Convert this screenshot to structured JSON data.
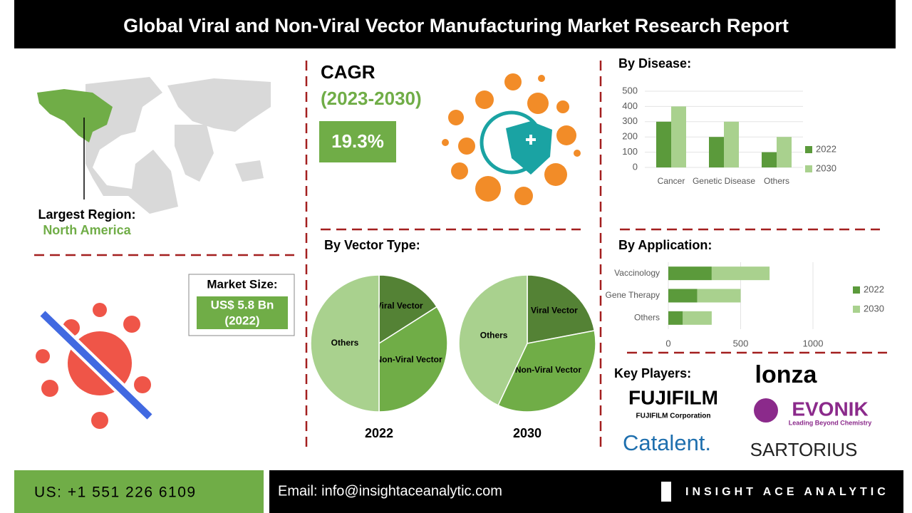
{
  "header": {
    "title": "Global Viral and Non-Viral Vector Manufacturing Market Research Report"
  },
  "region": {
    "label": "Largest Region:",
    "value": "North America"
  },
  "market_size": {
    "label": "Market Size:",
    "value": "US$ 5.8 Bn",
    "year": "(2022)"
  },
  "cagr": {
    "label": "CAGR",
    "period": "(2023-2030)",
    "value": "19.3%"
  },
  "sections": {
    "disease": "By Disease:",
    "vector_type": "By Vector Type:",
    "application": "By Application:",
    "key_players": "Key Players:"
  },
  "chart_data": [
    {
      "type": "bar",
      "categories": [
        "Cancer",
        "Genetic Disease",
        "Others"
      ],
      "series": [
        {
          "name": "2022",
          "color": "#5b9a3b",
          "values": [
            300,
            200,
            100
          ]
        },
        {
          "name": "2030",
          "color": "#a9d18e",
          "values": [
            400,
            300,
            200
          ]
        }
      ],
      "ylim": [
        0,
        500
      ],
      "yticks": [
        0,
        100,
        200,
        300,
        400,
        500
      ],
      "grid": true,
      "legend": "right"
    },
    {
      "type": "pie",
      "title": "2022",
      "categories": [
        "Viral Vector",
        "Non-Viral Vector",
        "Others"
      ],
      "values": [
        16,
        34,
        50
      ],
      "colors": [
        "#548235",
        "#70ad47",
        "#a9d18e"
      ]
    },
    {
      "type": "pie",
      "title": "2030",
      "categories": [
        "Viral Vector",
        "Non-Viral Vector",
        "Others"
      ],
      "values": [
        22,
        35,
        43
      ],
      "colors": [
        "#548235",
        "#70ad47",
        "#a9d18e"
      ]
    },
    {
      "type": "barh",
      "stacked": true,
      "categories": [
        "Vaccinology",
        "Gene Therapy",
        "Others"
      ],
      "series": [
        {
          "name": "2022",
          "color": "#5b9a3b",
          "values": [
            300,
            200,
            100
          ]
        },
        {
          "name": "2030",
          "color": "#a9d18e",
          "values": [
            400,
            300,
            200
          ]
        }
      ],
      "xlim": [
        0,
        1000
      ],
      "xticks": [
        0,
        500,
        1000
      ],
      "grid": true,
      "legend": "right"
    }
  ],
  "key_players": [
    "FUJIFILM",
    "FUJIFILM Corporation",
    "lonza",
    "EVONIK",
    "Leading Beyond Chemistry",
    "Catalent.",
    "SARTORIUS"
  ],
  "footer": {
    "phone": "US: +1 551 226 6109",
    "email": "Email: info@insightaceanalytic.com",
    "brand": "INSIGHT ACE ANALYTIC"
  }
}
